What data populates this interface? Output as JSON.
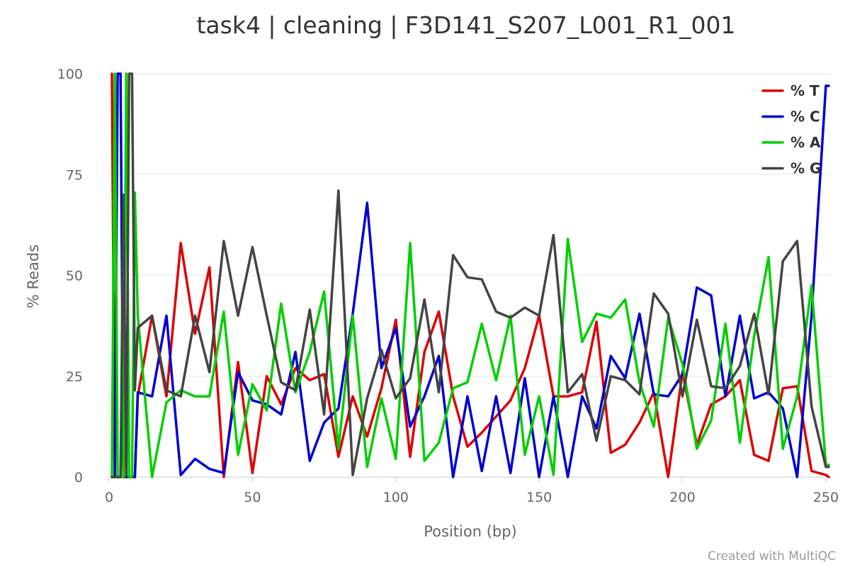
{
  "chart_data": {
    "type": "line",
    "title": "task4 | cleaning | F3D141_S207_L001_R1_001",
    "xlabel": "Position (bp)",
    "ylabel": "% Reads",
    "xlim": [
      0,
      252
    ],
    "ylim": [
      0,
      100
    ],
    "x_ticks": [
      0,
      50,
      100,
      150,
      200,
      250
    ],
    "y_ticks": [
      0,
      25,
      50,
      75,
      100
    ],
    "grid": "horizontal",
    "legend_position": "top-right",
    "credit": "Created with MultiQC",
    "x": [
      1,
      2,
      3,
      4,
      5,
      6,
      7,
      8,
      9,
      10,
      15,
      20,
      25,
      30,
      35,
      40,
      45,
      50,
      55,
      60,
      65,
      70,
      75,
      80,
      85,
      90,
      95,
      100,
      105,
      110,
      115,
      120,
      125,
      130,
      135,
      140,
      145,
      150,
      155,
      160,
      165,
      170,
      175,
      180,
      185,
      190,
      195,
      200,
      205,
      210,
      215,
      220,
      225,
      230,
      235,
      240,
      245,
      250,
      251
    ],
    "series": [
      {
        "name": "% T",
        "color": "#dd0000",
        "values": [
          100,
          0,
          0,
          0,
          30,
          0,
          0,
          0,
          0,
          20,
          40,
          20,
          58,
          35.5,
          52,
          0,
          28.5,
          1,
          25,
          18,
          27,
          24,
          25.5,
          5,
          20,
          10,
          22,
          39,
          5,
          31,
          41,
          20,
          7.5,
          11,
          15,
          19,
          27,
          40,
          20,
          20,
          21,
          38.5,
          6,
          8,
          13.5,
          21,
          0,
          26,
          8,
          18,
          20,
          24,
          5.5,
          4,
          22,
          22.5,
          1.5,
          0.5,
          0
        ]
      },
      {
        "name": "% C",
        "color": "#0000d1",
        "values": [
          0,
          0,
          100,
          100,
          0,
          0,
          0,
          0,
          0,
          21,
          20,
          40,
          0.5,
          4.5,
          2,
          1,
          26,
          19,
          18,
          15.5,
          31,
          4,
          13.5,
          17,
          40.5,
          68,
          27,
          37,
          12.5,
          20,
          30,
          0,
          20,
          1.5,
          20,
          1,
          24.5,
          0,
          20,
          0,
          20,
          12,
          30,
          24.5,
          40.5,
          20.5,
          20,
          25.5,
          47,
          45,
          20,
          40,
          19.5,
          21,
          17,
          0,
          40,
          97,
          97
        ]
      },
      {
        "name": "% A",
        "color": "#00cf00",
        "values": [
          0,
          100,
          0,
          0,
          0,
          100,
          0,
          0,
          70.5,
          40,
          0,
          18.5,
          21.5,
          20,
          20,
          41,
          5.5,
          23,
          16.5,
          43,
          21,
          31,
          46,
          7,
          40,
          2.5,
          19.5,
          4.5,
          58,
          4,
          8.5,
          22,
          23.5,
          38,
          24,
          40,
          5.5,
          20,
          0.5,
          59,
          33.5,
          40.5,
          39.5,
          44,
          23.5,
          12.5,
          39.5,
          28,
          7,
          14,
          38,
          8.5,
          35,
          54.5,
          7,
          20,
          47.5,
          3,
          3
        ]
      },
      {
        "name": "% G",
        "color": "#444444",
        "values": [
          0,
          0,
          0,
          0,
          70,
          0,
          100,
          100,
          21.5,
          37,
          40,
          21.5,
          20,
          40,
          26,
          58.5,
          40,
          57,
          40,
          23.5,
          21.5,
          41.5,
          15.5,
          71,
          0.5,
          19.5,
          31.5,
          19.5,
          24.5,
          44,
          21,
          55,
          49.5,
          49,
          41,
          39.5,
          42,
          40,
          60,
          21,
          25.5,
          9,
          25,
          24,
          20.5,
          45.5,
          40.5,
          20,
          39,
          22.5,
          22,
          27.5,
          40.5,
          20.5,
          53.5,
          58.5,
          17.5,
          2.5,
          2.5
        ]
      }
    ]
  }
}
